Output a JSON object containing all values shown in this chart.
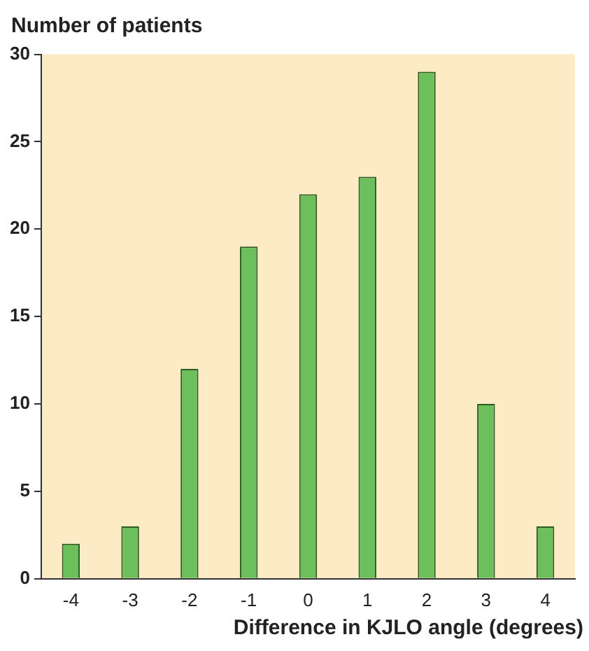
{
  "chart_data": {
    "type": "bar",
    "ylabel": "Number of patients",
    "xlabel": "Difference in KJLO angle (degrees)",
    "categories": [
      "-4",
      "-3",
      "-2",
      "-1",
      "0",
      "1",
      "2",
      "3",
      "4"
    ],
    "values": [
      2,
      3,
      12,
      19,
      22,
      23,
      29,
      10,
      3
    ],
    "color": "#6cbf5b",
    "ylim": [
      0,
      30
    ],
    "yticks": [
      0,
      5,
      10,
      15,
      20,
      25,
      30
    ],
    "grid": false,
    "legend": false
  }
}
